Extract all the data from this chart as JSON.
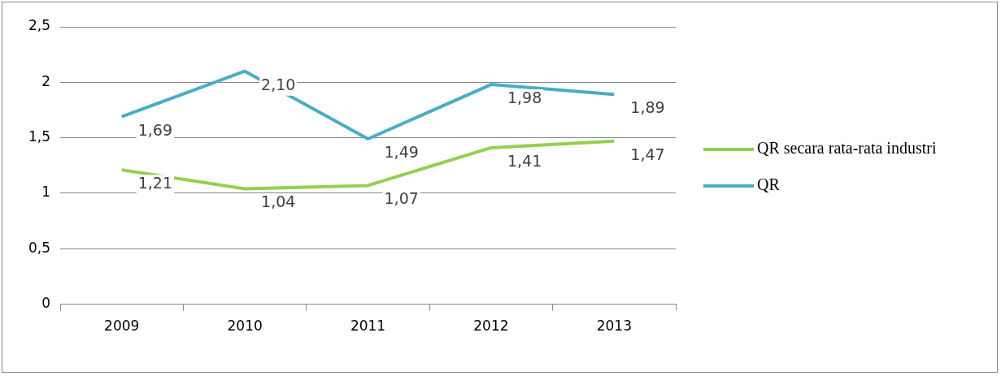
{
  "chart_data": {
    "type": "line",
    "categories": [
      "2009",
      "2010",
      "2011",
      "2012",
      "2013"
    ],
    "series": [
      {
        "name": "QR secara rata-rata industri",
        "color": "#92d050",
        "values": [
          1.21,
          1.04,
          1.07,
          1.41,
          1.47
        ],
        "value_labels": [
          "1,21",
          "1,04",
          "1,07",
          "1,41",
          "1,47"
        ]
      },
      {
        "name": "QR",
        "color": "#4bacc6",
        "values": [
          1.69,
          2.1,
          1.49,
          1.98,
          1.89
        ],
        "value_labels": [
          "1,69",
          "2,10",
          "1,49",
          "1,98",
          "1,89"
        ]
      }
    ],
    "ylim": [
      0,
      2.5
    ],
    "yticks": [
      0,
      {
        "value": 0.5,
        "label": "0,5"
      },
      1,
      {
        "value": 1.5,
        "label": "1,5"
      },
      2,
      {
        "value": 2.5,
        "label": "2,5"
      }
    ],
    "grid": "y",
    "legend": "right",
    "marker": "none",
    "line_style": "solid"
  }
}
